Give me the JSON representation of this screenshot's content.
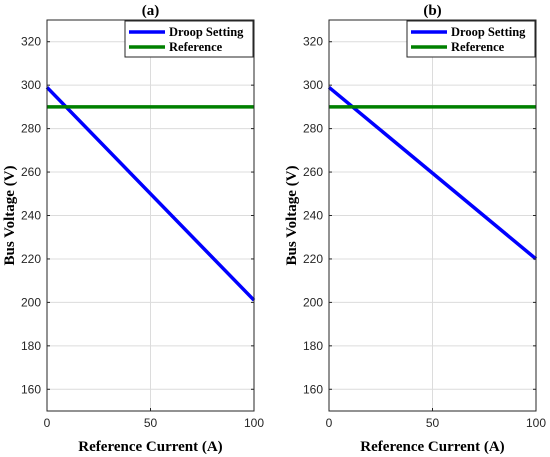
{
  "chart_data": [
    {
      "type": "line",
      "title": "(a)",
      "xlabel": "Reference Current (A)",
      "ylabel": "Bus Voltage (V)",
      "xlim": [
        0,
        100
      ],
      "ylim": [
        150,
        330
      ],
      "xticks": [
        0,
        50,
        100
      ],
      "yticks": [
        160,
        180,
        200,
        220,
        240,
        260,
        280,
        300,
        320
      ],
      "grid": true,
      "legend_position": "top-right",
      "series": [
        {
          "name": "Droop Setting",
          "color": "#0000ff",
          "x": [
            0,
            100
          ],
          "y": [
            299,
            201
          ]
        },
        {
          "name": "Reference",
          "color": "#008000",
          "x": [
            0,
            100
          ],
          "y": [
            290,
            290
          ]
        }
      ]
    },
    {
      "type": "line",
      "title": "(b)",
      "xlabel": "Reference Current (A)",
      "ylabel": "Bus Voltage (V)",
      "xlim": [
        0,
        100
      ],
      "ylim": [
        150,
        330
      ],
      "xticks": [
        0,
        50,
        100
      ],
      "yticks": [
        160,
        180,
        200,
        220,
        240,
        260,
        280,
        300,
        320
      ],
      "grid": true,
      "legend_position": "top-right",
      "series": [
        {
          "name": "Droop Setting",
          "color": "#0000ff",
          "x": [
            0,
            100
          ],
          "y": [
            299,
            220
          ]
        },
        {
          "name": "Reference",
          "color": "#008000",
          "x": [
            0,
            100
          ],
          "y": [
            290,
            290
          ]
        }
      ]
    }
  ]
}
